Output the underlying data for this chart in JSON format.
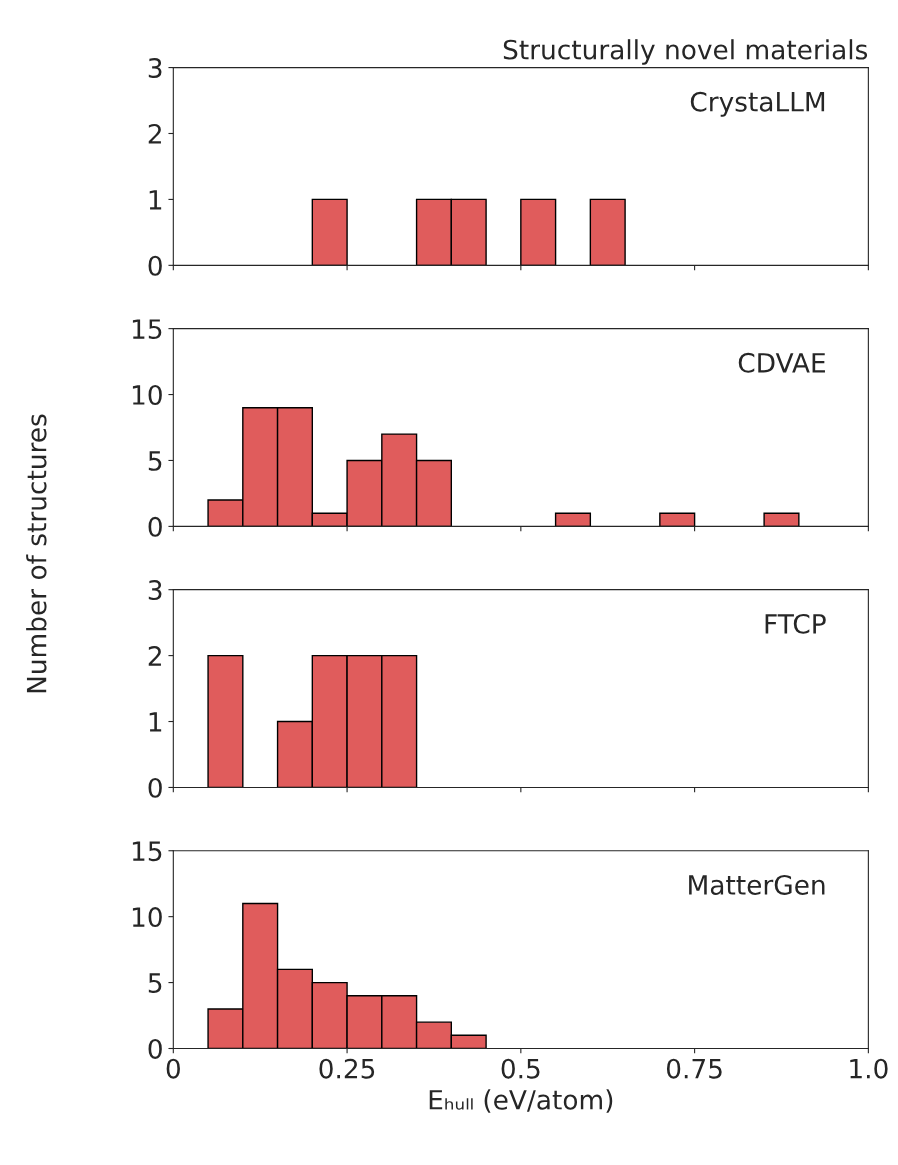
{
  "chart_data": [
    {
      "type": "histogram",
      "title": "Structurally novel materials",
      "annotations": [
        "CrystaLLM"
      ],
      "bins": [
        0.05,
        0.1,
        0.15,
        0.2,
        0.25,
        0.3,
        0.35,
        0.4,
        0.45,
        0.5,
        0.55,
        0.6,
        0.65,
        0.7,
        0.75,
        0.8,
        0.85,
        0.9
      ],
      "values": [
        0,
        0,
        0,
        1,
        0,
        0,
        1,
        1,
        0,
        1,
        0,
        1,
        0,
        0,
        0,
        0,
        0
      ],
      "color": "#e05c5c",
      "xlim": [
        0,
        1
      ],
      "ylim": [
        0,
        3
      ],
      "yticks": [
        0,
        1,
        2,
        3
      ],
      "xticks": [
        0,
        0.25,
        0.5,
        0.75,
        1
      ],
      "tick_labels": "y"
    },
    {
      "type": "histogram",
      "ylabel": "Number of structures",
      "annotations": [
        "CDVAE"
      ],
      "bins": [
        0.05,
        0.1,
        0.15,
        0.2,
        0.25,
        0.3,
        0.35,
        0.4,
        0.45,
        0.5,
        0.55,
        0.6,
        0.65,
        0.7,
        0.75,
        0.8,
        0.85,
        0.9
      ],
      "values": [
        2,
        9,
        9,
        1,
        5,
        7,
        5,
        0,
        0,
        0,
        1,
        0,
        0,
        1,
        0,
        0,
        1
      ],
      "color": "#e05c5c",
      "xlim": [
        0,
        1
      ],
      "ylim": [
        0,
        15
      ],
      "yticks": [
        0,
        5,
        10,
        15
      ],
      "xticks": [
        0,
        0.25,
        0.5,
        0.75,
        1
      ],
      "tick_labels": "y"
    },
    {
      "type": "histogram",
      "annotations": [
        "FTCP"
      ],
      "bins": [
        0.05,
        0.1,
        0.15,
        0.2,
        0.25,
        0.3,
        0.35,
        0.4,
        0.45,
        0.5,
        0.55,
        0.6,
        0.65,
        0.7,
        0.75,
        0.8,
        0.85,
        0.9
      ],
      "values": [
        2,
        0,
        1,
        2,
        2,
        2,
        0,
        0,
        0,
        0,
        0,
        0,
        0,
        0,
        0,
        0,
        0
      ],
      "color": "#e05c5c",
      "xlim": [
        0,
        1
      ],
      "ylim": [
        0,
        3
      ],
      "yticks": [
        0,
        1,
        2,
        3
      ],
      "xticks": [
        0,
        0.25,
        0.5,
        0.75,
        1
      ],
      "tick_labels": "y"
    },
    {
      "type": "histogram",
      "xlabel": "Eₕᵤₗₗ (eV/atom)",
      "annotations": [
        "MatterGen"
      ],
      "bins": [
        0.05,
        0.1,
        0.15,
        0.2,
        0.25,
        0.3,
        0.35,
        0.4,
        0.45,
        0.5,
        0.55,
        0.6,
        0.65,
        0.7,
        0.75,
        0.8,
        0.85,
        0.9
      ],
      "values": [
        3,
        11,
        6,
        5,
        4,
        4,
        2,
        1,
        0,
        0,
        0,
        0,
        0,
        0,
        0,
        0,
        0
      ],
      "color": "#e05c5c",
      "xlim": [
        0,
        1
      ],
      "ylim": [
        0,
        15
      ],
      "yticks": [
        0,
        5,
        10,
        15
      ],
      "xticks": [
        0,
        0.25,
        0.5,
        0.75,
        {
          "value": 1,
          "label": "1.0"
        }
      ]
    }
  ]
}
